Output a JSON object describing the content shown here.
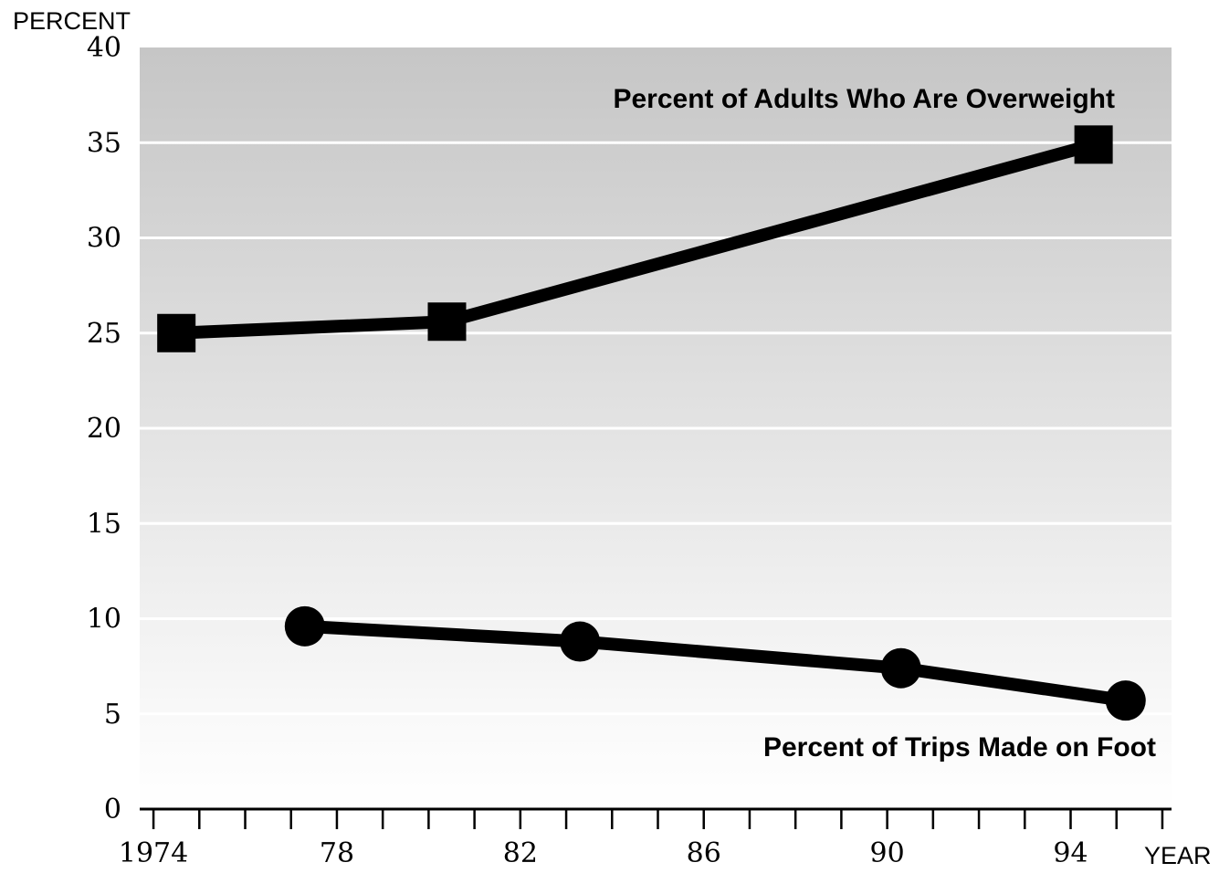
{
  "chart_data": {
    "type": "line",
    "ylabel": "PERCENT",
    "xlabel": "YEAR",
    "xlim": [
      1973.7,
      96.2
    ],
    "ylim": [
      0,
      40
    ],
    "grid": true,
    "x_ticks": [
      "1974",
      "78",
      "82",
      "86",
      "90",
      "94"
    ],
    "x_tick_values": [
      1974,
      1978,
      1982,
      1986,
      1990,
      1994
    ],
    "y_ticks": [
      "0",
      "5",
      "10",
      "15",
      "20",
      "25",
      "30",
      "35",
      "40"
    ],
    "y_tick_values": [
      0,
      5,
      10,
      15,
      20,
      25,
      30,
      35,
      40
    ],
    "series": [
      {
        "name": "Percent of Adults Who Are Overweight",
        "marker": "square",
        "points": [
          {
            "x": 1974.5,
            "y": 25.0
          },
          {
            "x": 1980.4,
            "y": 25.6
          },
          {
            "x": 1994.5,
            "y": 34.9
          }
        ]
      },
      {
        "name": "Percent of Trips Made on Foot",
        "marker": "circle",
        "points": [
          {
            "x": 1977.3,
            "y": 9.6
          },
          {
            "x": 1983.3,
            "y": 8.8
          },
          {
            "x": 1990.3,
            "y": 7.4
          },
          {
            "x": 1995.2,
            "y": 5.7
          }
        ]
      }
    ],
    "colors": {
      "line": "#000000",
      "grid": "#ffffff",
      "background_top": "#c8c8c8",
      "background_bottom": "#ffffff"
    }
  }
}
